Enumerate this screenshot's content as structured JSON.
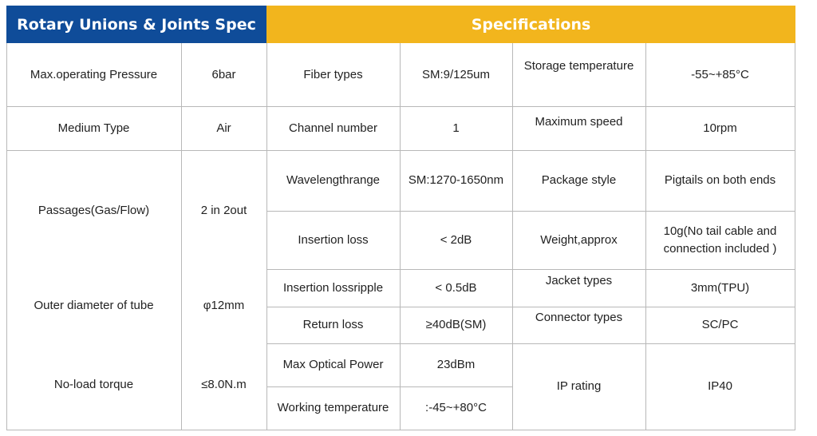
{
  "headers": {
    "left": "Rotary Unions & Joints Spec",
    "right": "Specifications",
    "left_bg": "#0f4c99",
    "right_bg": "#f2b51d"
  },
  "rotary": {
    "pressure_label": "Max.operating Pressure",
    "pressure_value": "6bar",
    "medium_label": "Medium Type",
    "medium_value": "Air",
    "passages_label": "Passages(Gas/Flow)",
    "passages_value": "2 in 2out",
    "tube_label": "Outer diameter of tube",
    "tube_value": "φ12mm",
    "torque_label": "No-load torque",
    "torque_value": "≤8.0N.m"
  },
  "spec": {
    "fiber_label": "Fiber types",
    "fiber_value": "SM:9/125um",
    "storage_label": "Storage temperature",
    "storage_value": "-55~+85°C",
    "channel_label": "Channel number",
    "channel_value": "1",
    "speed_label": "Maximum speed",
    "speed_value": "10rpm",
    "wavelength_label": "Wavelengthrange",
    "wavelength_value": "SM:1270-1650nm",
    "package_label": "Package style",
    "package_value": "Pigtails on both ends",
    "insertion_label": "Insertion loss",
    "insertion_value": "< 2dB",
    "weight_label": "Weight,approx",
    "weight_value": "10g(No tail cable and connection included )",
    "ripple_label": "Insertion lossripple",
    "ripple_value": "< 0.5dB",
    "jacket_label": "Jacket types",
    "jacket_value": "3mm(TPU)",
    "return_label": "Return loss",
    "return_value": "≥40dB(SM)",
    "connector_label": "Connector types",
    "connector_value": "SC/PC",
    "power_label": "Max Optical Power",
    "power_value": "23dBm",
    "working_label": "Working temperature",
    "working_value": ":-45~+80°C",
    "ip_label": "IP rating",
    "ip_value": "IP40"
  }
}
